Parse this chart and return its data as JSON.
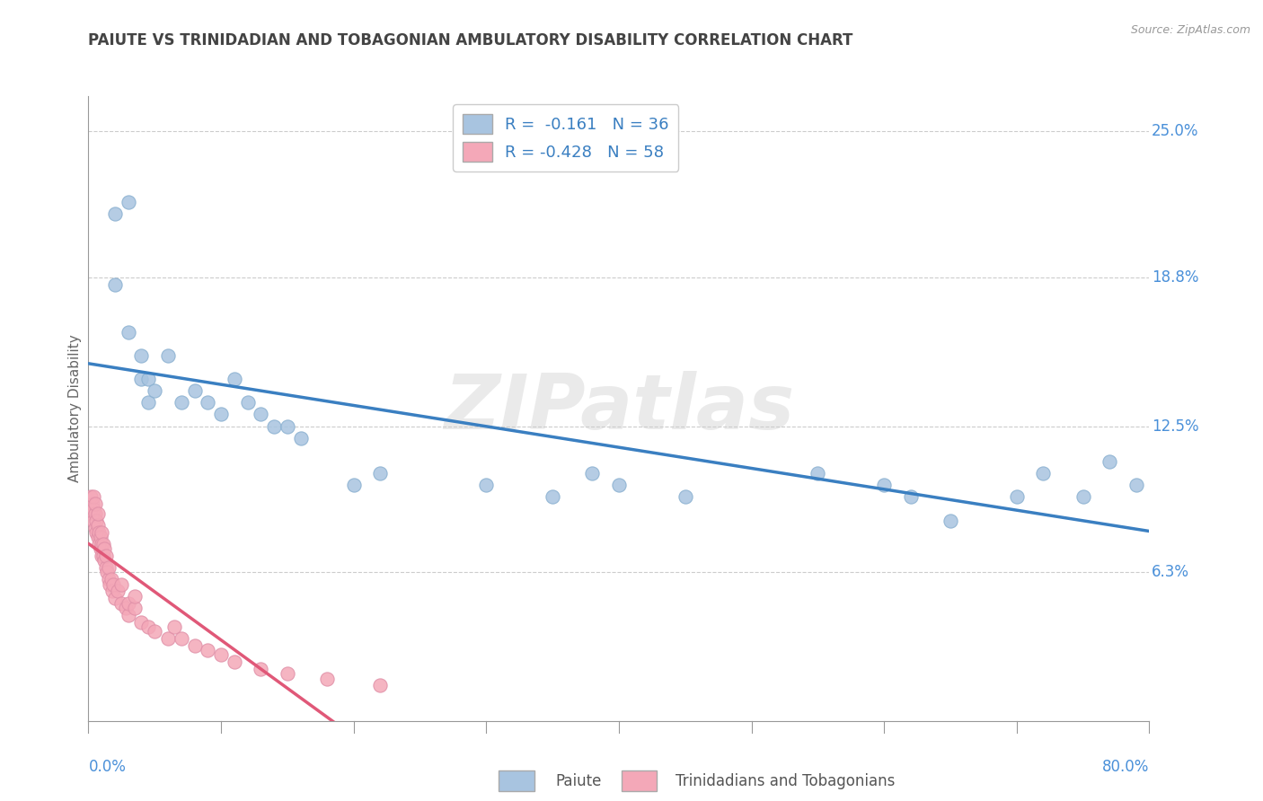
{
  "title": "PAIUTE VS TRINIDADIAN AND TOBAGONIAN AMBULATORY DISABILITY CORRELATION CHART",
  "source": "Source: ZipAtlas.com",
  "ylabel": "Ambulatory Disability",
  "xlim": [
    0.0,
    0.8
  ],
  "ylim": [
    -0.04,
    0.265
  ],
  "plot_ylim": [
    0.0,
    0.265
  ],
  "yticks": [
    0.063,
    0.125,
    0.188,
    0.25
  ],
  "ytick_labels": [
    "6.3%",
    "12.5%",
    "18.8%",
    "25.0%"
  ],
  "xtick_labels": [
    "0.0%",
    "80.0%"
  ],
  "xticks": [
    0.0,
    0.8
  ],
  "paiute_color": "#a8c4e0",
  "trinidadian_color": "#f4a8b8",
  "paiute_line_color": "#3a7fc1",
  "trinidadian_line_color": "#e05878",
  "legend_label_paiute": "R =  -0.161   N = 36",
  "legend_label_trini": "R = -0.428   N = 58",
  "watermark": "ZIPatlas",
  "paiute_scatter_x": [
    0.02,
    0.03,
    0.02,
    0.03,
    0.04,
    0.04,
    0.045,
    0.045,
    0.05,
    0.06,
    0.07,
    0.08,
    0.09,
    0.1,
    0.11,
    0.12,
    0.13,
    0.14,
    0.15,
    0.16,
    0.2,
    0.22,
    0.3,
    0.35,
    0.38,
    0.4,
    0.45,
    0.55,
    0.6,
    0.62,
    0.65,
    0.7,
    0.72,
    0.75,
    0.77,
    0.79
  ],
  "paiute_scatter_y": [
    0.215,
    0.22,
    0.185,
    0.165,
    0.155,
    0.145,
    0.145,
    0.135,
    0.14,
    0.155,
    0.135,
    0.14,
    0.135,
    0.13,
    0.145,
    0.135,
    0.13,
    0.125,
    0.125,
    0.12,
    0.1,
    0.105,
    0.1,
    0.095,
    0.105,
    0.1,
    0.095,
    0.105,
    0.1,
    0.095,
    0.085,
    0.095,
    0.105,
    0.095,
    0.11,
    0.1
  ],
  "trini_scatter_x": [
    0.002,
    0.002,
    0.003,
    0.003,
    0.004,
    0.004,
    0.004,
    0.005,
    0.005,
    0.005,
    0.006,
    0.006,
    0.007,
    0.007,
    0.007,
    0.008,
    0.008,
    0.009,
    0.009,
    0.01,
    0.01,
    0.01,
    0.011,
    0.011,
    0.012,
    0.012,
    0.013,
    0.013,
    0.014,
    0.015,
    0.015,
    0.016,
    0.017,
    0.018,
    0.019,
    0.02,
    0.022,
    0.025,
    0.025,
    0.028,
    0.03,
    0.03,
    0.035,
    0.035,
    0.04,
    0.045,
    0.05,
    0.06,
    0.065,
    0.07,
    0.08,
    0.09,
    0.1,
    0.11,
    0.13,
    0.15,
    0.18,
    0.22
  ],
  "trini_scatter_y": [
    0.09,
    0.095,
    0.088,
    0.092,
    0.085,
    0.09,
    0.095,
    0.082,
    0.088,
    0.092,
    0.08,
    0.085,
    0.078,
    0.083,
    0.088,
    0.075,
    0.08,
    0.073,
    0.078,
    0.07,
    0.075,
    0.08,
    0.07,
    0.075,
    0.068,
    0.073,
    0.065,
    0.07,
    0.063,
    0.06,
    0.065,
    0.058,
    0.06,
    0.055,
    0.058,
    0.052,
    0.055,
    0.05,
    0.058,
    0.048,
    0.045,
    0.05,
    0.048,
    0.053,
    0.042,
    0.04,
    0.038,
    0.035,
    0.04,
    0.035,
    0.032,
    0.03,
    0.028,
    0.025,
    0.022,
    0.02,
    0.018,
    0.015
  ],
  "bg_color": "#ffffff",
  "grid_color": "#cccccc",
  "title_color": "#444444",
  "axis_label_color": "#666666",
  "tick_color": "#4a90d9"
}
